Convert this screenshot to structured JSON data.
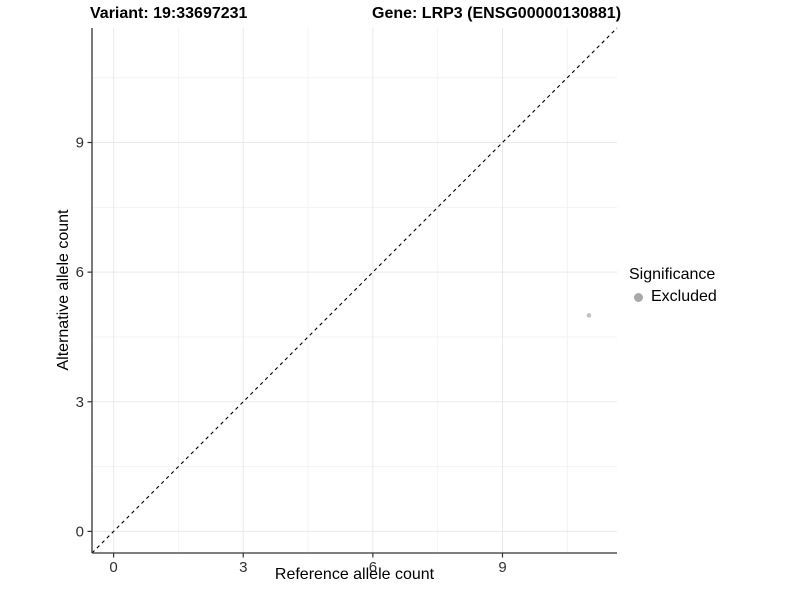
{
  "titles": {
    "variant": "Variant: 19:33697231",
    "gene": "Gene: LRP3 (ENSG00000130881)"
  },
  "axes": {
    "x_label": "Reference allele count",
    "y_label": "Alternative allele count"
  },
  "legend": {
    "title": "Significance",
    "items": [
      {
        "label": "Excluded",
        "color": "#a8a8a8"
      }
    ]
  },
  "colors": {
    "background": "#ffffff",
    "grid_major": "#e9e9e9",
    "grid_minor": "#f3f3f3",
    "axis_line": "#333333",
    "tick_mark": "#333333",
    "tick_text": "#303030",
    "point": "#c2c2c2",
    "legend_dot": "#a8a8a8",
    "reference_line": "#000000"
  },
  "chart_data": {
    "type": "scatter",
    "title_left": "Variant: 19:33697231",
    "title_right": "Gene: LRP3 (ENSG00000130881)",
    "xlabel": "Reference allele count",
    "ylabel": "Alternative allele count",
    "xlim": [
      -0.5,
      11.65
    ],
    "ylim": [
      -0.5,
      11.65
    ],
    "x_ticks": [
      0,
      3,
      6,
      9
    ],
    "y_ticks": [
      0,
      3,
      6,
      9
    ],
    "x_minor_ticks": [
      1.5,
      4.5,
      7.5,
      10.5
    ],
    "y_minor_ticks": [
      1.5,
      4.5,
      7.5,
      10.5
    ],
    "grid": "major+minor on white background",
    "reference_line": "identity y=x, black dashed, corner to corner",
    "series": [
      {
        "name": "Excluded",
        "color": "#c2c2c2",
        "points": [
          {
            "x": 11,
            "y": 5
          }
        ]
      }
    ],
    "legend": {
      "title": "Significance",
      "position": "right",
      "entries": [
        "Excluded"
      ]
    }
  }
}
